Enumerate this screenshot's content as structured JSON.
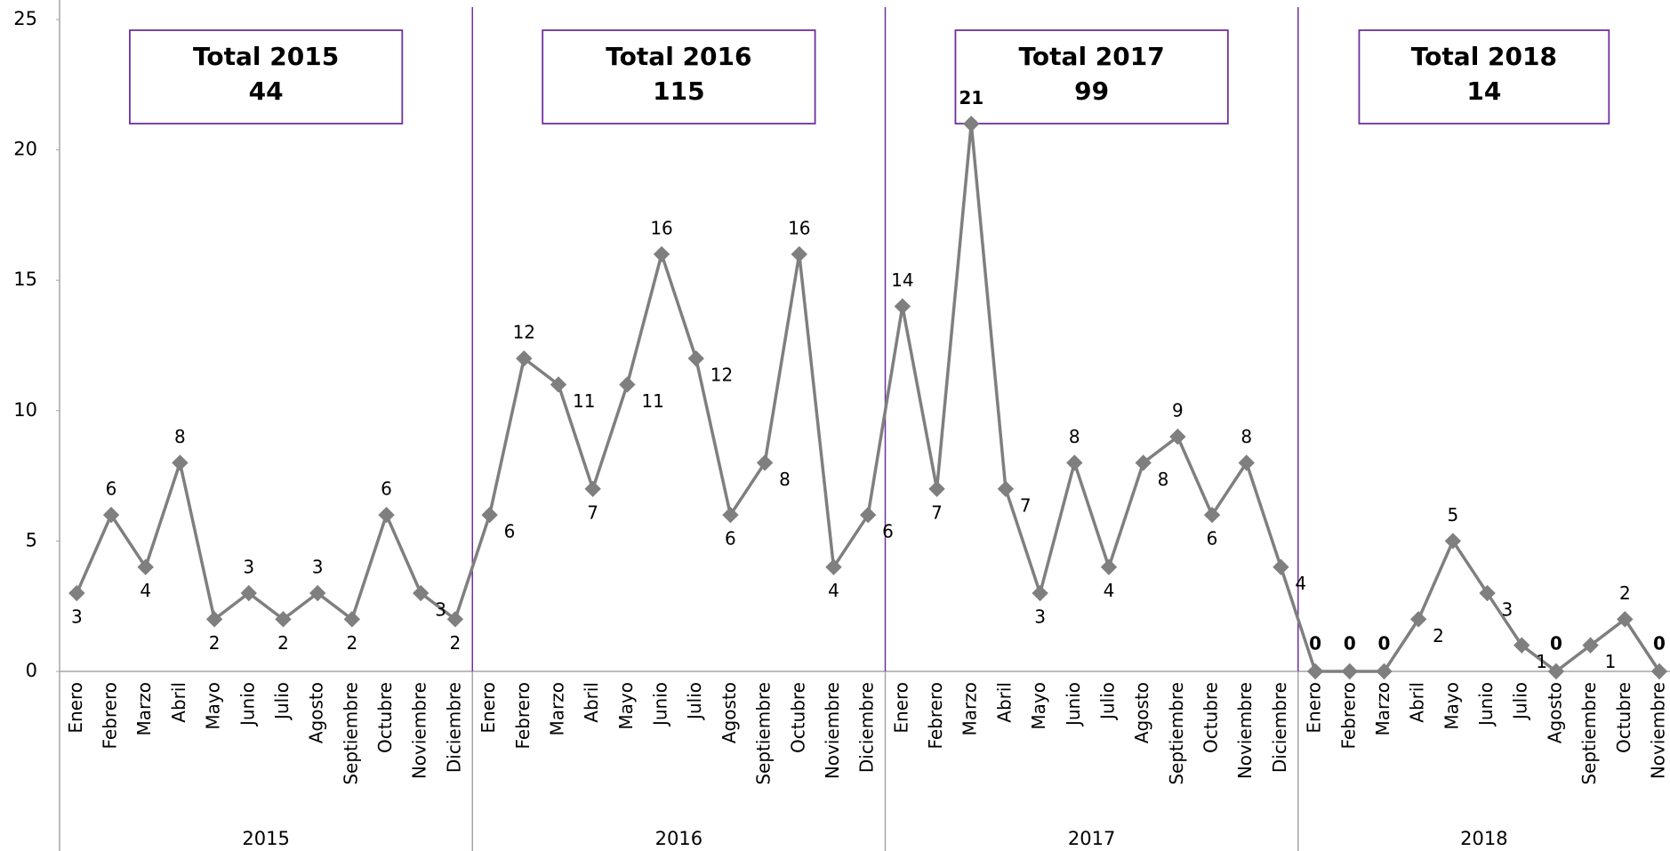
{
  "chart_data": {
    "type": "line",
    "color": "#7f7f7f",
    "label_color": "#000000",
    "max_label_color": "#ff0000",
    "zero_label_color": "#00b050",
    "separator_color": "#7030a0",
    "ylim": [
      0,
      25
    ],
    "yticks": [
      0,
      5,
      10,
      15,
      20,
      25
    ],
    "groups": [
      {
        "label": "2015",
        "total_title": "Total 2015",
        "total": 44,
        "categories": [
          "Enero",
          "Febrero",
          "Marzo",
          "Abril",
          "Mayo",
          "Junio",
          "Julio",
          "Agosto",
          "Septiembre",
          "Octubre",
          "Noviembre",
          "Diciembre"
        ],
        "values": [
          3,
          6,
          4,
          8,
          2,
          3,
          2,
          3,
          2,
          6,
          3,
          2
        ]
      },
      {
        "label": "2016",
        "total_title": "Total 2016",
        "total": 115,
        "categories": [
          "Enero",
          "Febrero",
          "Marzo",
          "Abril",
          "Mayo",
          "Junio",
          "Julio",
          "Agosto",
          "Septiembre",
          "Octubre",
          "Noviembre",
          "Diciembre"
        ],
        "values": [
          6,
          12,
          11,
          7,
          11,
          16,
          12,
          6,
          8,
          16,
          4,
          6
        ]
      },
      {
        "label": "2017",
        "total_title": "Total 2017",
        "total": 99,
        "categories": [
          "Enero",
          "Febrero",
          "Marzo",
          "Abril",
          "Mayo",
          "Junio",
          "Julio",
          "Agosto",
          "Septiembre",
          "Octubre",
          "Noviembre",
          "Diciembre"
        ],
        "values": [
          14,
          7,
          21,
          7,
          3,
          8,
          4,
          8,
          9,
          6,
          8,
          4
        ]
      },
      {
        "label": "2018",
        "total_title": "Total 2018",
        "total": 14,
        "categories": [
          "Enero",
          "Febrero",
          "Marzo",
          "Abril",
          "Mayo",
          "Junio",
          "Julio",
          "Agosto",
          "Septiembre",
          "Octubre",
          "Noviembre"
        ],
        "values": [
          0,
          0,
          0,
          2,
          5,
          3,
          1,
          0,
          1,
          2,
          0
        ]
      }
    ]
  }
}
